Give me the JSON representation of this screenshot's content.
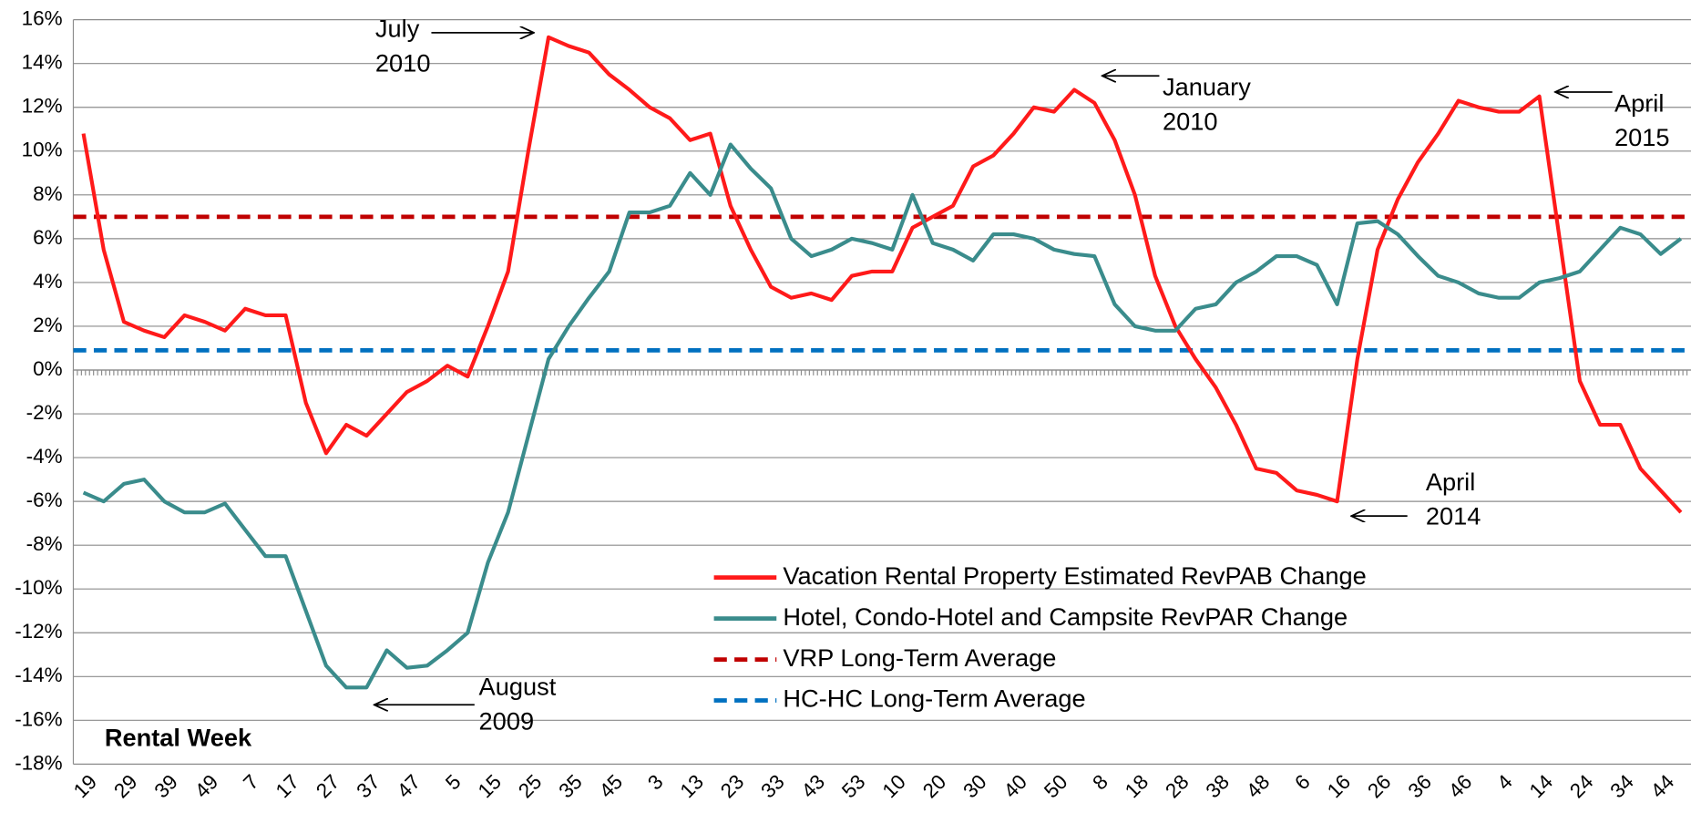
{
  "chart_data": {
    "type": "line",
    "x_label": "Rental Week",
    "categories": [
      "19",
      null,
      "29",
      null,
      "39",
      null,
      "49",
      null,
      "7",
      null,
      "17",
      null,
      "27",
      null,
      "37",
      null,
      "47",
      null,
      "5",
      null,
      "15",
      null,
      "25",
      null,
      "35",
      null,
      "45",
      null,
      "3",
      null,
      "13",
      null,
      "23",
      null,
      "33",
      null,
      "43",
      null,
      "53",
      null,
      "10",
      null,
      "20",
      null,
      "30",
      null,
      "40",
      null,
      "50",
      null,
      "8",
      null,
      "18",
      null,
      "28",
      null,
      "38",
      null,
      "48",
      null,
      "6",
      null,
      "16",
      null,
      "26",
      null,
      "36",
      null,
      "46",
      null,
      "4",
      null,
      "14",
      null,
      "24",
      null,
      "34",
      null,
      "44",
      null
    ],
    "series": [
      {
        "name": "Vacation Rental Property Estimated RevPAB Change",
        "color": "#ff1a1a",
        "values": [
          10.8,
          5.5,
          2.2,
          1.8,
          1.5,
          2.5,
          2.2,
          1.8,
          2.8,
          2.5,
          2.5,
          -1.5,
          -3.8,
          -2.5,
          -3.0,
          -2.0,
          -1.0,
          -0.5,
          0.2,
          -0.3,
          2.0,
          4.5,
          10,
          15.2,
          14.8,
          14.5,
          13.5,
          12.8,
          12.0,
          11.5,
          10.5,
          10.8,
          7.5,
          5.5,
          3.8,
          3.3,
          3.5,
          3.2,
          4.3,
          4.5,
          4.5,
          6.5,
          7.0,
          7.5,
          9.3,
          9.8,
          10.8,
          12,
          11.8,
          12.8,
          12.2,
          10.5,
          8.0,
          4.3,
          2.0,
          0.5,
          -0.8,
          -2.5,
          -4.5,
          -4.7,
          -5.5,
          -5.7,
          -6,
          0.5,
          5.5,
          7.8,
          9.5,
          10.8,
          12.3,
          12,
          11.8,
          11.8,
          12.5,
          6,
          -0.5,
          -2.5,
          -2.5,
          -4.5,
          -5.5,
          -6.5
        ]
      },
      {
        "name": "Hotel, Condo-Hotel and Campsite RevPAR Change",
        "color": "#3a8c8c",
        "values": [
          -5.6,
          -6,
          -5.2,
          -5.0,
          -6,
          -6.5,
          -6.5,
          -6.1,
          -7.3,
          -8.5,
          -8.5,
          -11,
          -13.5,
          -14.5,
          -14.5,
          -12.8,
          -13.6,
          -13.5,
          -12.8,
          -12,
          -8.8,
          -6.5,
          -3,
          0.5,
          2.0,
          3.3,
          4.5,
          7.2,
          7.2,
          7.5,
          9.0,
          8,
          10.3,
          9.2,
          8.3,
          6,
          5.2,
          5.5,
          6,
          5.8,
          5.5,
          8,
          5.8,
          5.5,
          5.0,
          6.2,
          6.2,
          6.0,
          5.5,
          5.3,
          5.2,
          3,
          2,
          1.8,
          1.8,
          2.8,
          3.0,
          4.0,
          4.5,
          5.2,
          5.2,
          4.8,
          3,
          6.7,
          6.8,
          6.2,
          5.2,
          4.3,
          4.0,
          3.5,
          3.3,
          3.3,
          4,
          4.2,
          4.5,
          5.5,
          6.5,
          6.2,
          5.3,
          6.0
        ]
      }
    ],
    "reference_lines": [
      {
        "name": "VRP Long-Term Average",
        "color": "#c00000",
        "value": 7.0
      },
      {
        "name": "HC-HC Long-Term Average",
        "color": "#0070c0",
        "value": 0.9
      }
    ],
    "ylim": [
      -18,
      16
    ],
    "yticks": [
      {
        "value": -18,
        "label": "-18%"
      },
      {
        "value": -16,
        "label": "-16%"
      },
      {
        "value": -14,
        "label": "-14%"
      },
      {
        "value": -12,
        "label": "-12%"
      },
      {
        "value": -10,
        "label": "-10%"
      },
      {
        "value": -8,
        "label": "-8%"
      },
      {
        "value": -6,
        "label": "-6%"
      },
      {
        "value": -4,
        "label": "-4%"
      },
      {
        "value": -2,
        "label": "-2%"
      },
      {
        "value": 0,
        "label": "0%"
      },
      {
        "value": 2,
        "label": "2%"
      },
      {
        "value": 4,
        "label": "4%"
      },
      {
        "value": 6,
        "label": "6%"
      },
      {
        "value": 8,
        "label": "8%"
      },
      {
        "value": 10,
        "label": "10%"
      },
      {
        "value": 12,
        "label": "12%"
      },
      {
        "value": 14,
        "label": "14%"
      },
      {
        "value": 16,
        "label": "16%"
      }
    ],
    "grid": true,
    "legend": "lower center",
    "annotations": [
      {
        "lines": [
          "July",
          "2010"
        ]
      },
      {
        "lines": [
          "January",
          "2010"
        ]
      },
      {
        "lines": [
          "April",
          "2015"
        ]
      },
      {
        "lines": [
          "April",
          "2014"
        ]
      },
      {
        "lines": [
          "August",
          "2009"
        ]
      }
    ]
  }
}
